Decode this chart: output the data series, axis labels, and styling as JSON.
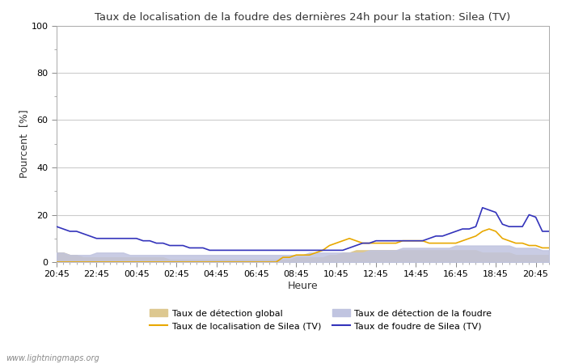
{
  "title": "Taux de localisation de la foudre des dernières 24h pour la station: Silea (TV)",
  "xlabel": "Heure",
  "ylabel": "Pourcent  [%]",
  "xtick_labels": [
    "20:45",
    "22:45",
    "00:45",
    "02:45",
    "04:45",
    "06:45",
    "08:45",
    "10:45",
    "12:45",
    "14:45",
    "16:45",
    "18:45",
    "20:45"
  ],
  "ylim": [
    0,
    100
  ],
  "yticks": [
    0,
    20,
    40,
    60,
    80,
    100
  ],
  "watermark": "www.lightningmaps.org",
  "bg_color": "#ffffff",
  "plot_bg_color": "#ffffff",
  "grid_color": "#cccccc",
  "detection_global_color": "#ddc890",
  "detection_foudre_color": "#c0c4e0",
  "localisation_silea_color": "#e8a800",
  "foudre_silea_color": "#3333bb",
  "detection_global": [
    4,
    4,
    3,
    3,
    2,
    2,
    2,
    2,
    2,
    2,
    2,
    2,
    2,
    2,
    2,
    2,
    2,
    1,
    1,
    1,
    1,
    1,
    1,
    1,
    1,
    1,
    1,
    1,
    1,
    1,
    1,
    1,
    1,
    1,
    1,
    1,
    2,
    2,
    2,
    2,
    2,
    3,
    3,
    4,
    4,
    5,
    5,
    5,
    5,
    5,
    5,
    5,
    5,
    5,
    5,
    5,
    5,
    5,
    5,
    5,
    5,
    5,
    5,
    5,
    4,
    4,
    4,
    4,
    4,
    3,
    3,
    3,
    3,
    3,
    3
  ],
  "detection_foudre": [
    4,
    4,
    3,
    3,
    3,
    3,
    4,
    4,
    4,
    4,
    4,
    3,
    3,
    3,
    3,
    3,
    3,
    3,
    3,
    3,
    3,
    3,
    3,
    3,
    3,
    3,
    3,
    3,
    3,
    3,
    3,
    3,
    3,
    3,
    3,
    3,
    3,
    3,
    4,
    4,
    4,
    4,
    4,
    4,
    4,
    4,
    4,
    5,
    5,
    5,
    5,
    5,
    6,
    6,
    6,
    6,
    6,
    6,
    6,
    6,
    7,
    7,
    7,
    7,
    7,
    7,
    7,
    7,
    7,
    6,
    6,
    6,
    6,
    5,
    5
  ],
  "localisation_silea": [
    0,
    0,
    0,
    0,
    0,
    0,
    0,
    0,
    0,
    0,
    0,
    0,
    0,
    0,
    0,
    0,
    0,
    0,
    0,
    0,
    0,
    0,
    0,
    0,
    0,
    0,
    0,
    0,
    0,
    0,
    0,
    0,
    0,
    0,
    2,
    2,
    3,
    3,
    3,
    4,
    5,
    7,
    8,
    9,
    10,
    9,
    8,
    8,
    8,
    8,
    8,
    8,
    9,
    9,
    9,
    9,
    8,
    8,
    8,
    8,
    8,
    9,
    10,
    11,
    13,
    14,
    13,
    10,
    9,
    8,
    8,
    7,
    7,
    6,
    6
  ],
  "foudre_silea": [
    15,
    14,
    13,
    13,
    12,
    11,
    10,
    10,
    10,
    10,
    10,
    10,
    10,
    9,
    9,
    8,
    8,
    7,
    7,
    7,
    6,
    6,
    6,
    5,
    5,
    5,
    5,
    5,
    5,
    5,
    5,
    5,
    5,
    5,
    5,
    5,
    5,
    5,
    5,
    5,
    5,
    5,
    5,
    5,
    6,
    7,
    8,
    8,
    9,
    9,
    9,
    9,
    9,
    9,
    9,
    9,
    10,
    11,
    11,
    12,
    13,
    14,
    14,
    15,
    23,
    22,
    21,
    16,
    15,
    15,
    15,
    20,
    19,
    13,
    13
  ]
}
